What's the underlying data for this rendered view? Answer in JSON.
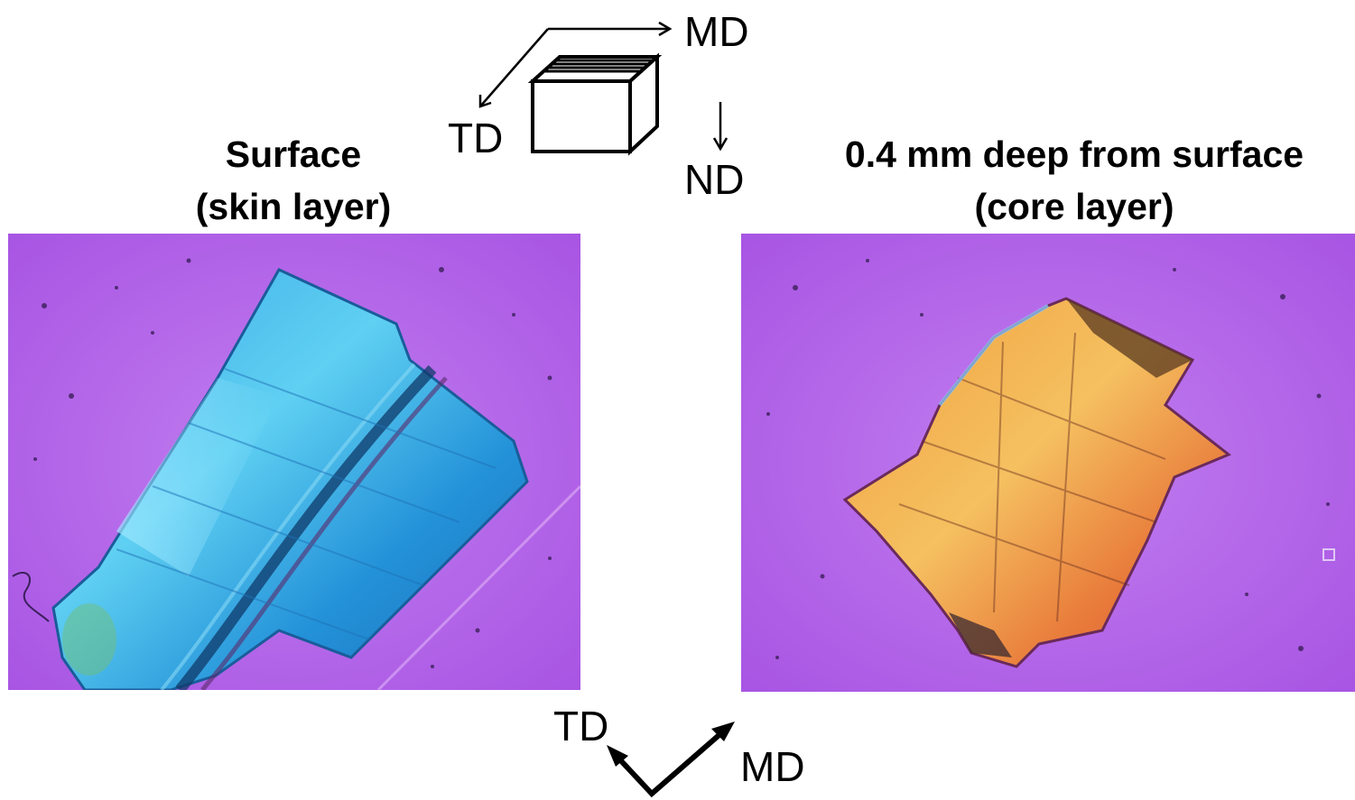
{
  "left_panel": {
    "title_line1": "Surface",
    "title_line2": "(skin layer)"
  },
  "right_panel": {
    "title_line1": "0.4 mm deep from surface",
    "title_line2": "(core layer)"
  },
  "cube_axes": {
    "top": "MD",
    "left": "TD",
    "down": "ND"
  },
  "bottom_axes": {
    "left": "TD",
    "right": "MD"
  },
  "colors": {
    "background_magenta": "#b060e8",
    "skin_crystal_blue": "#2bb4e8",
    "core_crystal_orange": "#e8943a"
  },
  "icons": {
    "left_image": "blue-crystal-micrograph",
    "right_image": "orange-crystal-micrograph"
  }
}
